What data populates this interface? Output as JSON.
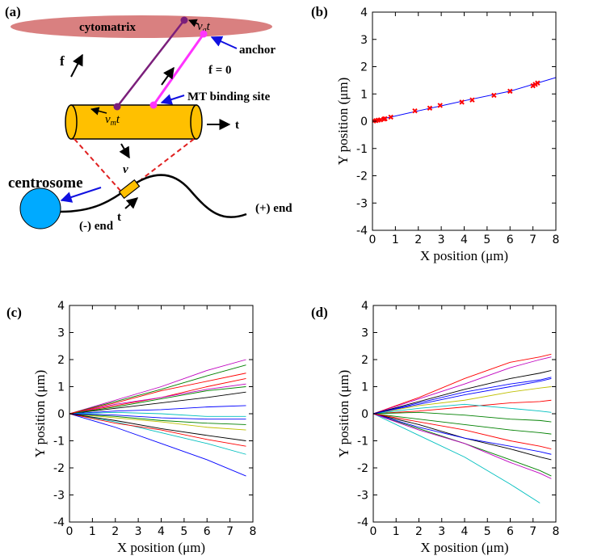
{
  "diagram": {
    "panel": "(a)",
    "cytomatrix": "cytomatrix",
    "anchor": "anchor",
    "f": "f",
    "f_zero": "f = 0",
    "binding_site": "MT binding site",
    "va_t": {
      "base": "v",
      "sub": "a",
      "tail": "t"
    },
    "vm_t": {
      "base": "v",
      "sub": "m",
      "tail": "t"
    },
    "t_axis": "t",
    "v": "v",
    "centrosome": "centrosome",
    "minus_end": "(-) end",
    "plus_end": "(+) end",
    "t_tube": "t"
  },
  "chart_data": [
    {
      "type": "scatter",
      "panel": "(b)",
      "x_label": "X position (μm)",
      "y_label": "Y position (μm)",
      "xlim": [
        0,
        8
      ],
      "ylim": [
        -4,
        4
      ],
      "xticks": [
        0,
        1,
        2,
        3,
        4,
        5,
        6,
        7,
        8
      ],
      "yticks": [
        -4,
        -3,
        -2,
        -1,
        0,
        1,
        2,
        3,
        4
      ],
      "series": [
        {
          "color": "#0000ff",
          "line": true,
          "x": [
            0,
            2,
            4,
            6,
            8
          ],
          "values": [
            0,
            0.38,
            0.75,
            1.1,
            1.6
          ]
        },
        {
          "color": "#ff0000",
          "x": [
            0.05,
            0.15,
            0.25,
            0.35,
            0.5,
            0.55,
            0.8,
            1.85,
            2.5,
            2.95,
            3.9,
            4.35,
            5.3,
            6.0,
            7.0,
            7.1,
            7.2
          ],
          "values": [
            0.01,
            0.02,
            0.04,
            0.05,
            0.08,
            0.09,
            0.15,
            0.38,
            0.48,
            0.58,
            0.7,
            0.78,
            0.95,
            1.1,
            1.3,
            1.35,
            1.4
          ]
        }
      ]
    },
    {
      "type": "line",
      "panel": "(c)",
      "x_label": "X position (μm)",
      "y_label": "Y position (μm)",
      "xlim": [
        0,
        8
      ],
      "ylim": [
        -4,
        4
      ],
      "xticks": [
        0,
        1,
        2,
        3,
        4,
        5,
        6,
        7,
        8
      ],
      "yticks": [
        -4,
        -3,
        -2,
        -1,
        0,
        1,
        2,
        3,
        4
      ],
      "x": [
        0,
        2,
        4,
        6,
        7.7
      ],
      "series": [
        {
          "color": "#0000ff",
          "values": [
            0,
            -0.5,
            -1.1,
            -1.7,
            -2.3
          ]
        },
        {
          "color": "#bf00bf",
          "values": [
            0,
            0.5,
            1.0,
            1.6,
            2.0
          ]
        },
        {
          "color": "#008000",
          "values": [
            0,
            0.45,
            0.9,
            1.4,
            1.8
          ]
        },
        {
          "color": "#ff0000",
          "values": [
            0,
            0.3,
            0.6,
            1.0,
            1.3
          ]
        },
        {
          "color": "#00bfbf",
          "values": [
            0,
            -0.3,
            -0.7,
            -1.1,
            -1.5
          ]
        },
        {
          "color": "#000000",
          "values": [
            0,
            0.2,
            0.4,
            0.6,
            0.8
          ]
        },
        {
          "color": "#bfbf00",
          "values": [
            0,
            -0.15,
            -0.3,
            -0.5,
            -0.6
          ]
        },
        {
          "color": "#0000ff",
          "values": [
            0,
            0.1,
            0.15,
            0.25,
            0.3
          ]
        },
        {
          "color": "#008000",
          "values": [
            0,
            -0.1,
            -0.25,
            -0.35,
            -0.4
          ]
        },
        {
          "color": "#ff0000",
          "values": [
            0,
            -0.35,
            -0.6,
            -0.95,
            -1.2
          ]
        },
        {
          "color": "#bf00bf",
          "values": [
            0,
            0.35,
            0.6,
            0.9,
            1.1
          ]
        },
        {
          "color": "#00bfbf",
          "values": [
            0,
            0.05,
            0.0,
            -0.1,
            -0.1
          ]
        },
        {
          "color": "#000000",
          "values": [
            0,
            -0.25,
            -0.55,
            -0.8,
            -1.0
          ]
        },
        {
          "color": "#008000",
          "values": [
            0,
            0.25,
            0.55,
            0.85,
            1.0
          ]
        },
        {
          "color": "#0000ff",
          "values": [
            0,
            -0.05,
            -0.15,
            -0.2,
            -0.2
          ]
        },
        {
          "color": "#ff0000",
          "values": [
            0,
            0.4,
            0.85,
            1.2,
            1.5
          ]
        }
      ]
    },
    {
      "type": "line",
      "panel": "(d)",
      "x_label": "X position (μm)",
      "y_label": "Y position (μm)",
      "xlim": [
        0,
        8
      ],
      "ylim": [
        -4,
        4
      ],
      "xticks": [
        0,
        1,
        2,
        3,
        4,
        5,
        6,
        7,
        8
      ],
      "yticks": [
        -4,
        -3,
        -2,
        -1,
        0,
        1,
        2,
        3,
        4
      ],
      "x": [
        0,
        2,
        4,
        6,
        7.3,
        7.8
      ],
      "series": [
        {
          "color": "#00bfbf",
          "values": [
            0,
            -0.8,
            -1.6,
            -2.6,
            -3.3,
            null
          ]
        },
        {
          "color": "#ff0000",
          "values": [
            0,
            0.6,
            1.3,
            1.9,
            2.1,
            2.2
          ]
        },
        {
          "color": "#bf00bf",
          "values": [
            0,
            0.55,
            1.1,
            1.7,
            2.0,
            2.1
          ]
        },
        {
          "color": "#008000",
          "values": [
            0,
            -0.55,
            -1.1,
            -1.7,
            -2.1,
            -2.3
          ]
        },
        {
          "color": "#0000ff",
          "values": [
            0,
            0.4,
            0.8,
            1.1,
            1.25,
            1.35
          ]
        },
        {
          "color": "#000000",
          "values": [
            0,
            -0.4,
            -0.9,
            -1.3,
            -1.6,
            -1.7
          ]
        },
        {
          "color": "#bfbf00",
          "values": [
            0,
            0.3,
            0.5,
            0.8,
            0.95,
            1.0
          ]
        },
        {
          "color": "#0000ff",
          "values": [
            0,
            -0.5,
            -0.9,
            -1.2,
            -1.4,
            -1.5
          ]
        },
        {
          "color": "#ff0000",
          "values": [
            0,
            0.1,
            0.25,
            0.4,
            0.45,
            0.5
          ]
        },
        {
          "color": "#008000",
          "values": [
            0,
            -0.2,
            -0.4,
            -0.6,
            -0.7,
            -0.75
          ]
        },
        {
          "color": "#bf00bf",
          "values": [
            0,
            -0.6,
            -1.1,
            -1.8,
            -2.2,
            -2.4
          ]
        },
        {
          "color": "#00bfbf",
          "values": [
            0,
            0.2,
            0.35,
            0.2,
            0.1,
            0.05
          ]
        },
        {
          "color": "#000000",
          "values": [
            0,
            0.45,
            0.9,
            1.3,
            1.5,
            1.6
          ]
        },
        {
          "color": "#008000",
          "values": [
            0,
            0.05,
            -0.05,
            -0.2,
            -0.25,
            -0.3
          ]
        },
        {
          "color": "#ff0000",
          "values": [
            0,
            -0.3,
            -0.6,
            -1.0,
            -1.2,
            -1.3
          ]
        },
        {
          "color": "#0000ff",
          "values": [
            0,
            0.35,
            0.7,
            1.0,
            1.2,
            1.3
          ]
        }
      ]
    }
  ]
}
